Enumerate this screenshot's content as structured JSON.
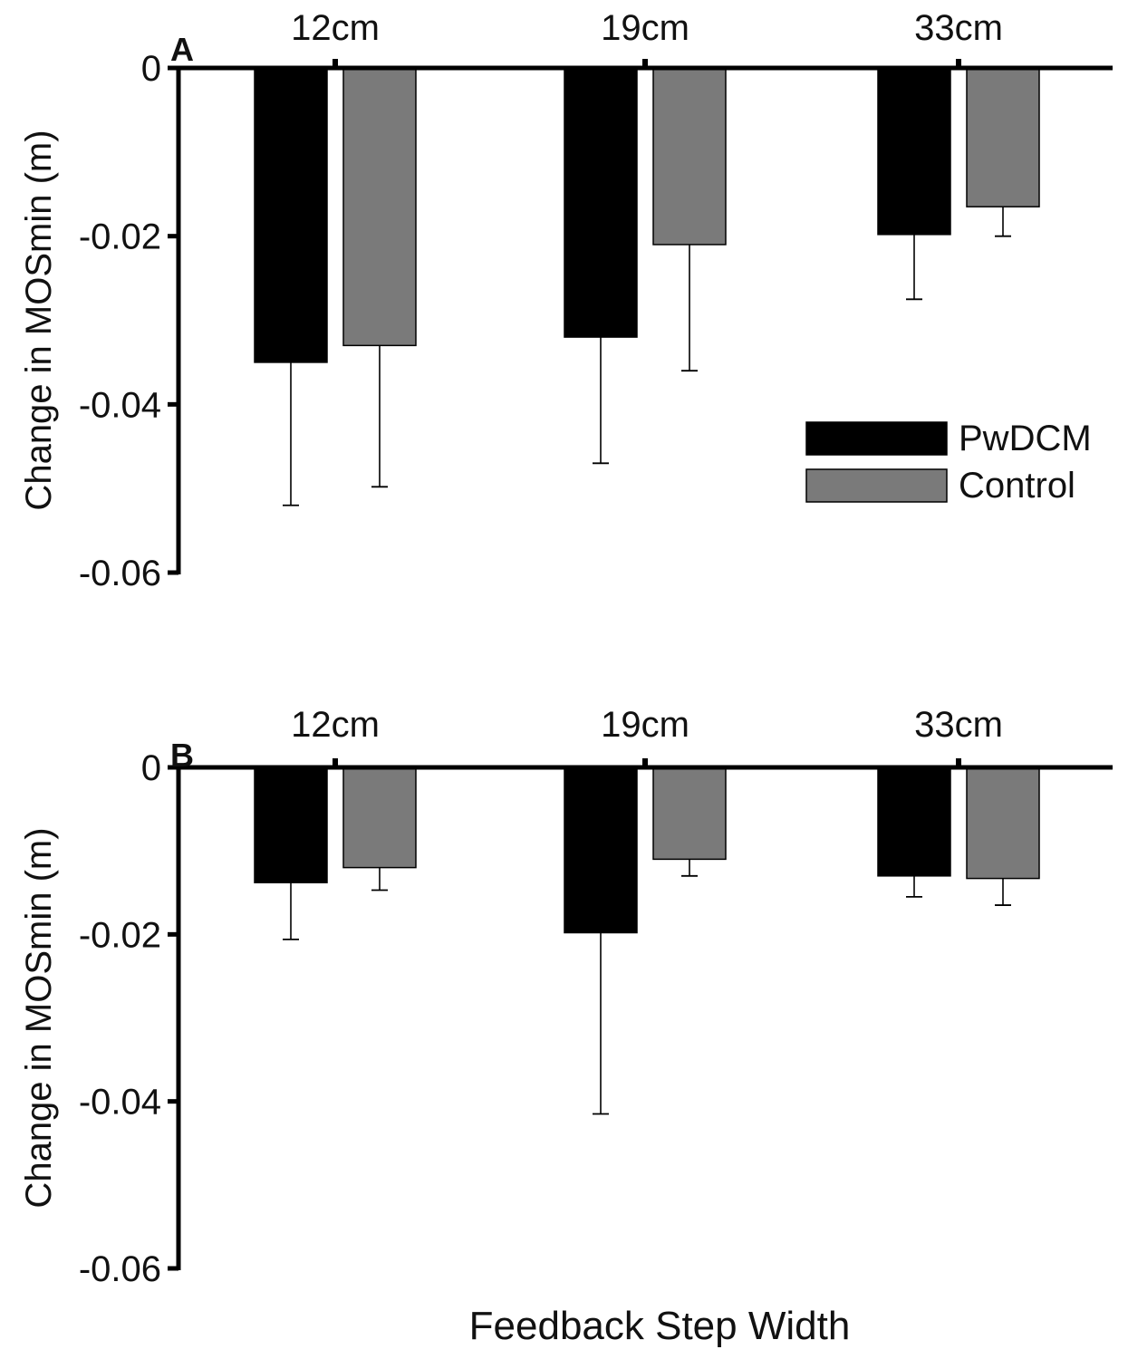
{
  "chart_data": [
    {
      "type": "bar",
      "panel_label": "A",
      "categories": [
        "12cm",
        "19cm",
        "33cm"
      ],
      "ylabel": "Change in MOSmin (m)",
      "ylim": [
        -0.06,
        0
      ],
      "yticks": [
        "0",
        "-0.02",
        "-0.04",
        "-0.06"
      ],
      "ytick_values": [
        0,
        -0.02,
        -0.04,
        -0.06
      ],
      "series": [
        {
          "name": "PwDCM",
          "color": "#000000",
          "values": [
            -0.035,
            -0.032,
            -0.0198
          ],
          "errors": [
            0.017,
            0.015,
            0.0077
          ]
        },
        {
          "name": "Control",
          "color": "#7a7a7a",
          "values": [
            -0.033,
            -0.021,
            -0.0165
          ],
          "errors": [
            0.0168,
            0.015,
            0.0035
          ]
        }
      ],
      "legend": {
        "position": "right",
        "entries": [
          "PwDCM",
          "Control"
        ]
      }
    },
    {
      "type": "bar",
      "panel_label": "B",
      "categories": [
        "12cm",
        "19cm",
        "33cm"
      ],
      "ylabel": "Change in MOSmin (m)",
      "ylim": [
        -0.06,
        0
      ],
      "yticks": [
        "0",
        "-0.02",
        "-0.04",
        "-0.06"
      ],
      "ytick_values": [
        0,
        -0.02,
        -0.04,
        -0.06
      ],
      "series": [
        {
          "name": "PwDCM",
          "color": "#000000",
          "values": [
            -0.0138,
            -0.0198,
            -0.013
          ],
          "errors": [
            0.0068,
            0.0217,
            0.0025
          ]
        },
        {
          "name": "Control",
          "color": "#7a7a7a",
          "values": [
            -0.012,
            -0.011,
            -0.0133
          ],
          "errors": [
            0.0027,
            0.002,
            0.0032
          ]
        }
      ]
    }
  ],
  "xlabel": "Feedback Step Width"
}
